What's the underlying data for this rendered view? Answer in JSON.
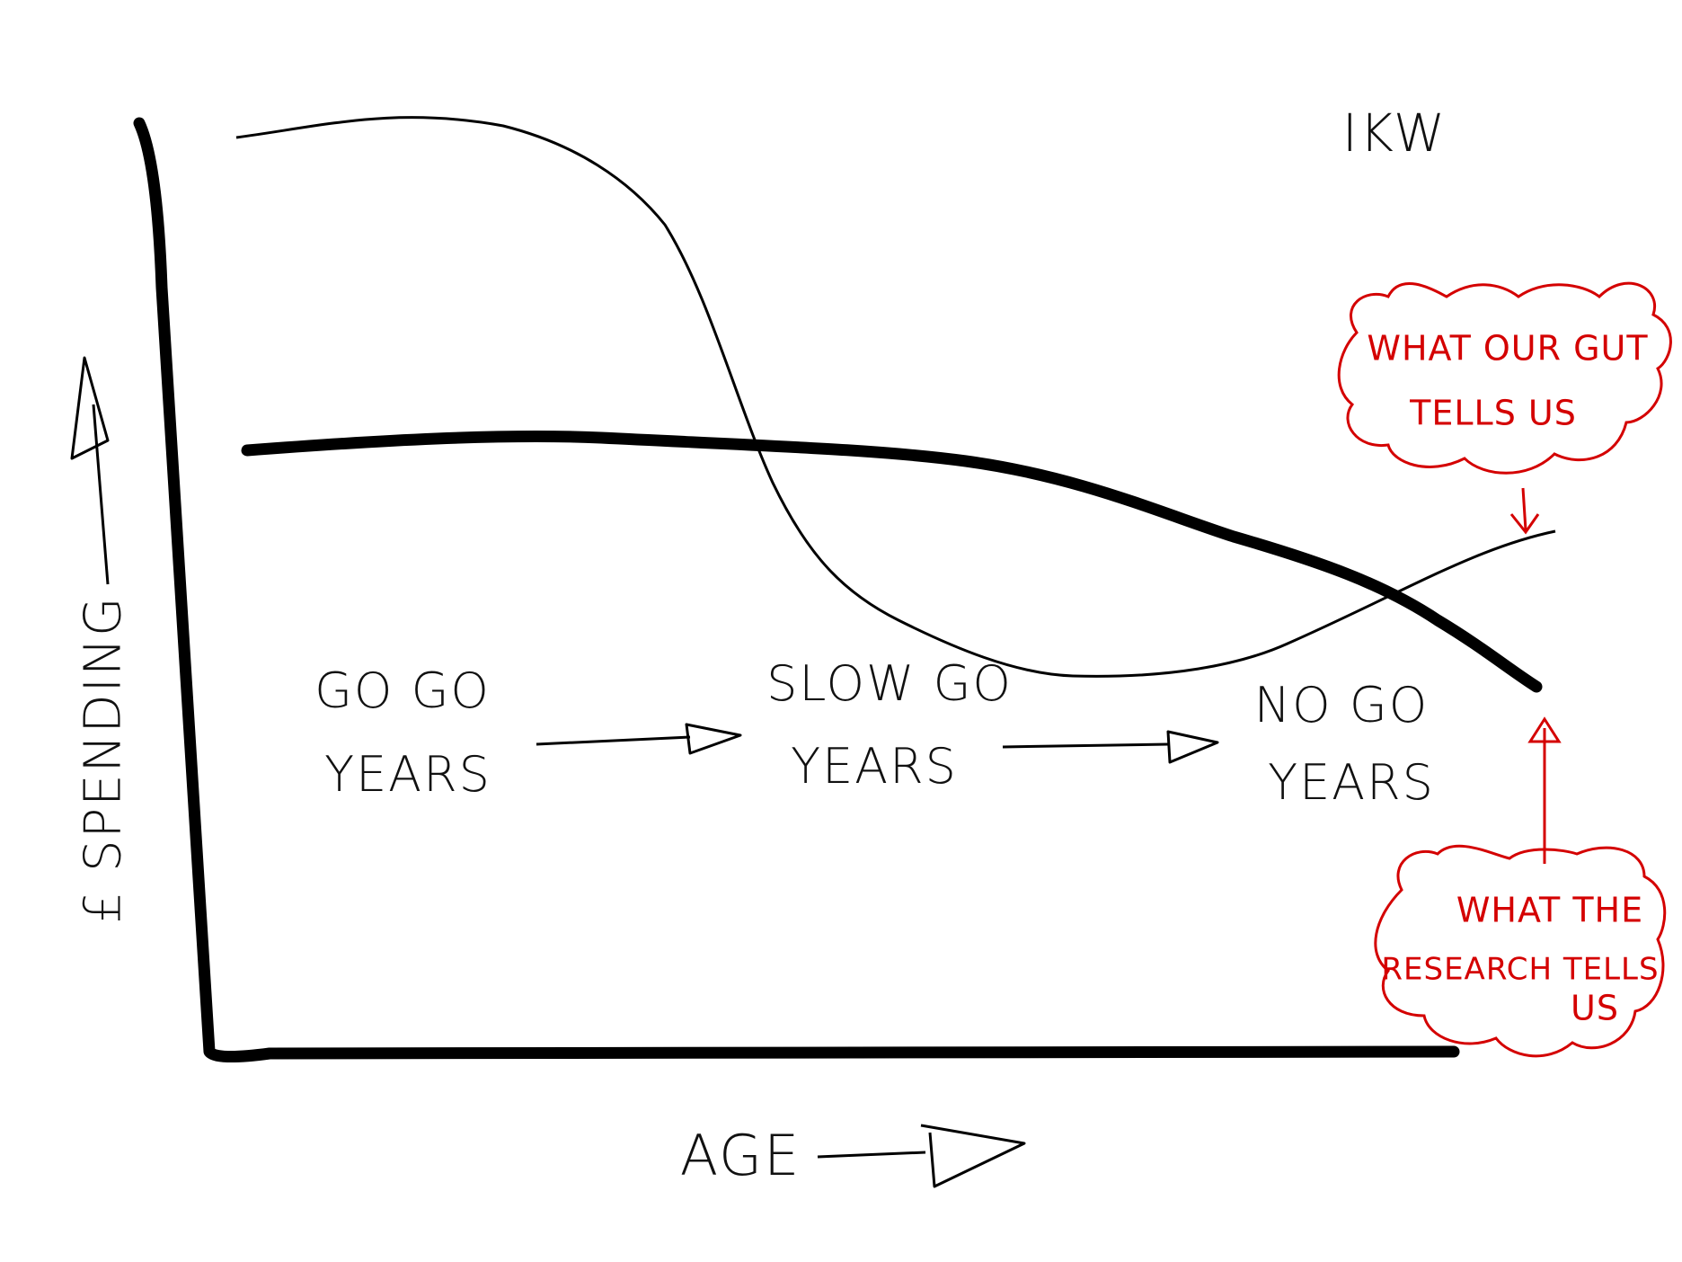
{
  "signature": "IKW",
  "y_axis_label": "£ SPENDING",
  "x_axis_label": "AGE",
  "phases": [
    {
      "lines": [
        "GO GO",
        "YEARS"
      ]
    },
    {
      "lines": [
        "SLOW GO",
        "YEARS"
      ]
    },
    {
      "lines": [
        "NO GO",
        "YEARS"
      ]
    }
  ],
  "callouts": [
    {
      "lines": [
        "WHAT OUR GUT",
        "TELLS US"
      ]
    },
    {
      "lines": [
        "WHAT THE",
        "RESEARCH TELLS",
        "US"
      ]
    }
  ]
}
